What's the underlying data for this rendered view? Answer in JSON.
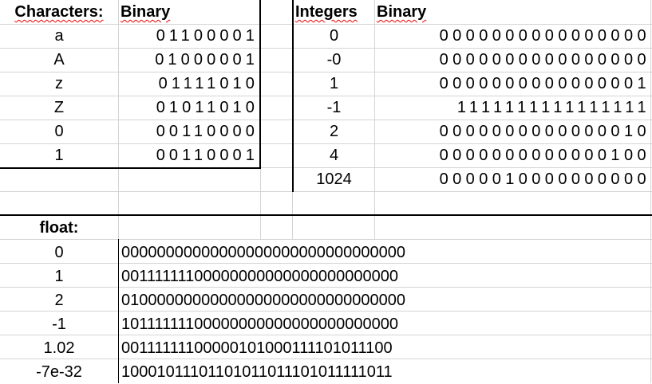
{
  "characters": {
    "header": "Characters:",
    "binary_header": "Binary",
    "rows": [
      {
        "char": "a",
        "binary": "01100001"
      },
      {
        "char": "A",
        "binary": "01000001"
      },
      {
        "char": "z",
        "binary": "01111010"
      },
      {
        "char": "Z",
        "binary": "01011010"
      },
      {
        "char": "0",
        "binary": "00110000"
      },
      {
        "char": "1",
        "binary": "00110001"
      }
    ]
  },
  "integers": {
    "header": "Integers",
    "binary_header": "Binary",
    "rows": [
      {
        "value": "0",
        "binary": "0000000000000000"
      },
      {
        "value": "-0",
        "binary": "0000000000000000"
      },
      {
        "value": "1",
        "binary": "0000000000000001"
      },
      {
        "value": "-1",
        "binary": "1111111111111111"
      },
      {
        "value": "2",
        "binary": "0000000000000010"
      },
      {
        "value": "4",
        "binary": "0000000000000100"
      },
      {
        "value": "1024",
        "binary": "0000010000000000"
      }
    ]
  },
  "floats": {
    "header": "float:",
    "rows": [
      {
        "value": "0",
        "binary": "00000000000000000000000000000000"
      },
      {
        "value": "1",
        "binary": "00111111100000000000000000000000"
      },
      {
        "value": "2",
        "binary": "01000000000000000000000000000000"
      },
      {
        "value": "-1",
        "binary": "10111111100000000000000000000000"
      },
      {
        "value": "1.02",
        "binary": "00111111100000101000111101011100"
      },
      {
        "value": "-7e-32",
        "binary": "10001011101101011011101011111011"
      }
    ]
  }
}
